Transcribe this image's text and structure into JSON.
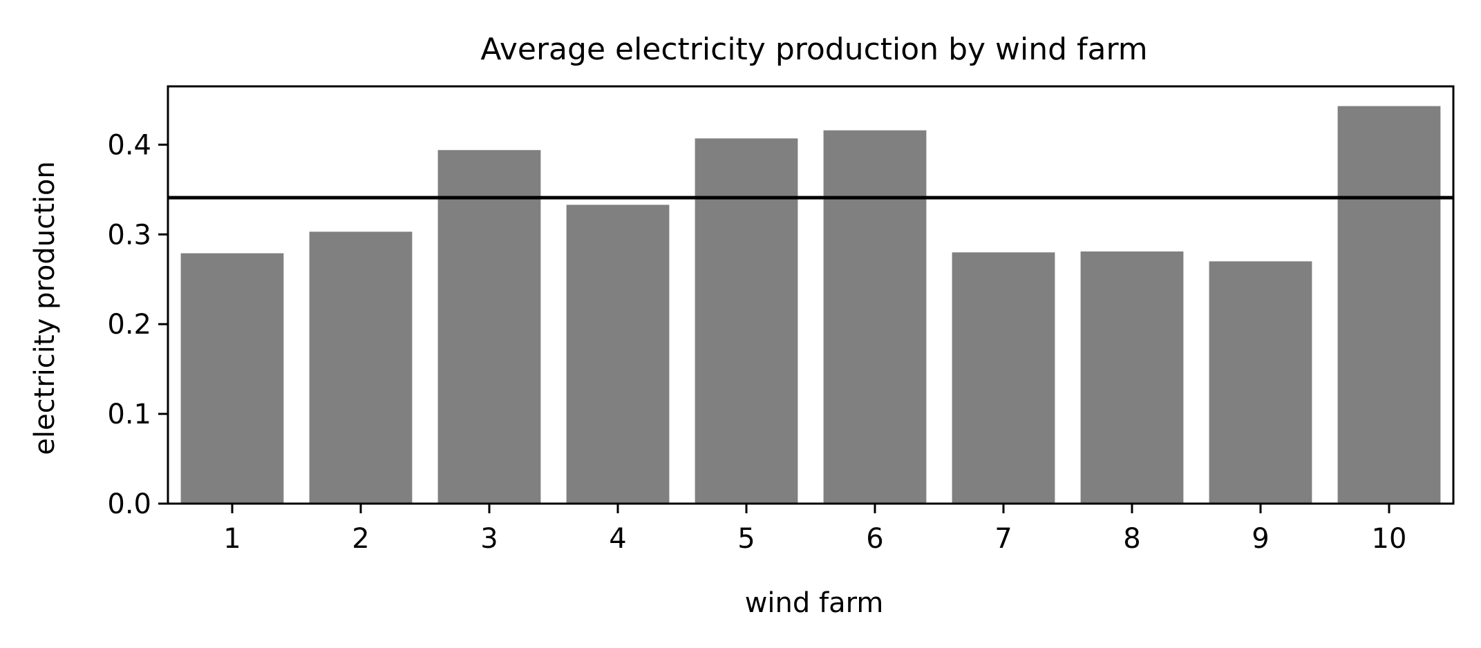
{
  "chart_data": {
    "type": "bar",
    "title": "Average electricity production by wind farm",
    "xlabel": "wind farm",
    "ylabel": "electricity production",
    "categories": [
      "1",
      "2",
      "3",
      "4",
      "5",
      "6",
      "7",
      "8",
      "9",
      "10"
    ],
    "values": [
      0.279,
      0.303,
      0.394,
      0.333,
      0.407,
      0.416,
      0.28,
      0.281,
      0.27,
      0.443
    ],
    "reference_line": 0.341,
    "ylim": [
      0,
      0.465
    ],
    "yticks": [
      0.0,
      0.1,
      0.2,
      0.3,
      0.4
    ],
    "ytick_labels": [
      "0.0",
      "0.1",
      "0.2",
      "0.3",
      "0.4"
    ],
    "grid": false,
    "legend": "none",
    "colors": {
      "bar": "#808080",
      "reference_line": "#000000",
      "axes": "#000000"
    }
  }
}
